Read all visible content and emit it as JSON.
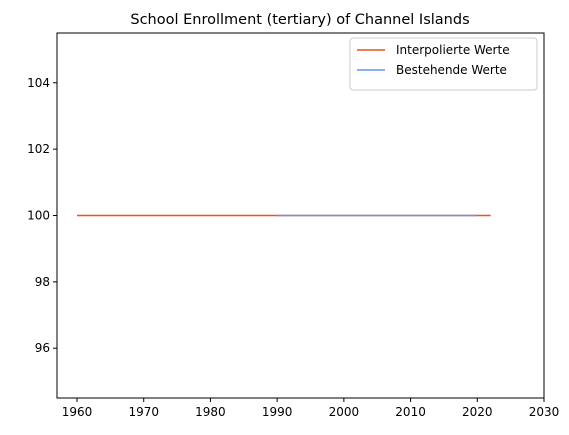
{
  "chart_data": {
    "type": "line",
    "title": "School Enrollment (tertiary) of Channel Islands",
    "xlabel": "",
    "ylabel": "",
    "xlim": [
      1957,
      2030
    ],
    "ylim": [
      94.5,
      105.5
    ],
    "xticks": [
      1960,
      1970,
      1980,
      1990,
      2000,
      2010,
      2020,
      2030
    ],
    "yticks": [
      96,
      98,
      100,
      102,
      104
    ],
    "grid": false,
    "legend_position": "upper right",
    "series": [
      {
        "name": "Interpolierte Werte",
        "color": "#e8541e",
        "x": [
          1960,
          1990,
          2020,
          2022
        ],
        "y": [
          100,
          100,
          100,
          100
        ]
      },
      {
        "name": "Bestehende Werte",
        "color": "#6495ed",
        "x": [
          1990,
          2020
        ],
        "y": [
          100,
          100
        ]
      }
    ]
  }
}
